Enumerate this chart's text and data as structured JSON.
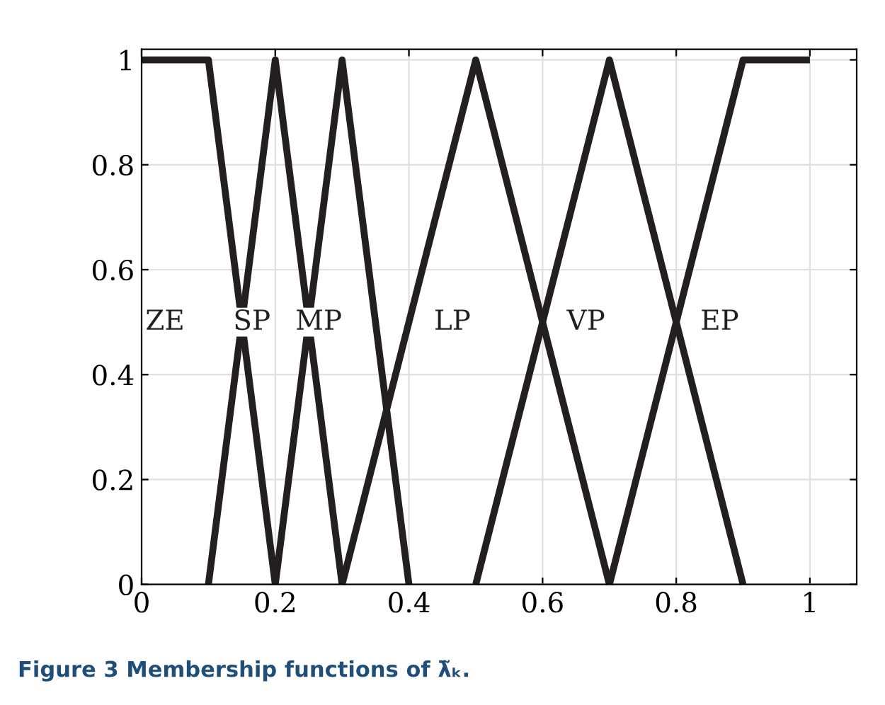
{
  "chart_data": {
    "type": "line",
    "series": [
      {
        "name": "ZE",
        "color": "#231f20",
        "x": [
          0,
          0.1,
          0.2
        ],
        "values": [
          1,
          1,
          0
        ]
      },
      {
        "name": "SP",
        "color": "#231f20",
        "x": [
          0.1,
          0.2,
          0.3
        ],
        "values": [
          0,
          1,
          0
        ]
      },
      {
        "name": "MP",
        "color": "#231f20",
        "x": [
          0.2,
          0.3,
          0.4
        ],
        "values": [
          0,
          1,
          0
        ]
      },
      {
        "name": "LP",
        "color": "#231f20",
        "x": [
          0.3,
          0.5,
          0.7
        ],
        "values": [
          0,
          1,
          0
        ]
      },
      {
        "name": "VP",
        "color": "#231f20",
        "x": [
          0.5,
          0.7,
          0.9
        ],
        "values": [
          0,
          1,
          0
        ]
      },
      {
        "name": "EP",
        "color": "#231f20",
        "x": [
          0.7,
          0.9,
          1
        ],
        "values": [
          0,
          1,
          1
        ]
      }
    ],
    "xlim": [
      0,
      1.07
    ],
    "ylim": [
      0,
      1.02
    ],
    "xticks": [
      0,
      0.2,
      0.4,
      0.6,
      0.8,
      1
    ],
    "yticks": [
      0,
      0.2,
      0.4,
      0.6,
      0.8,
      1
    ],
    "grid": true,
    "legend": false,
    "marker": "none",
    "line_style": "solid",
    "annotations": [
      "Figure 3 Membership functions of λ̃ₖ."
    ]
  }
}
